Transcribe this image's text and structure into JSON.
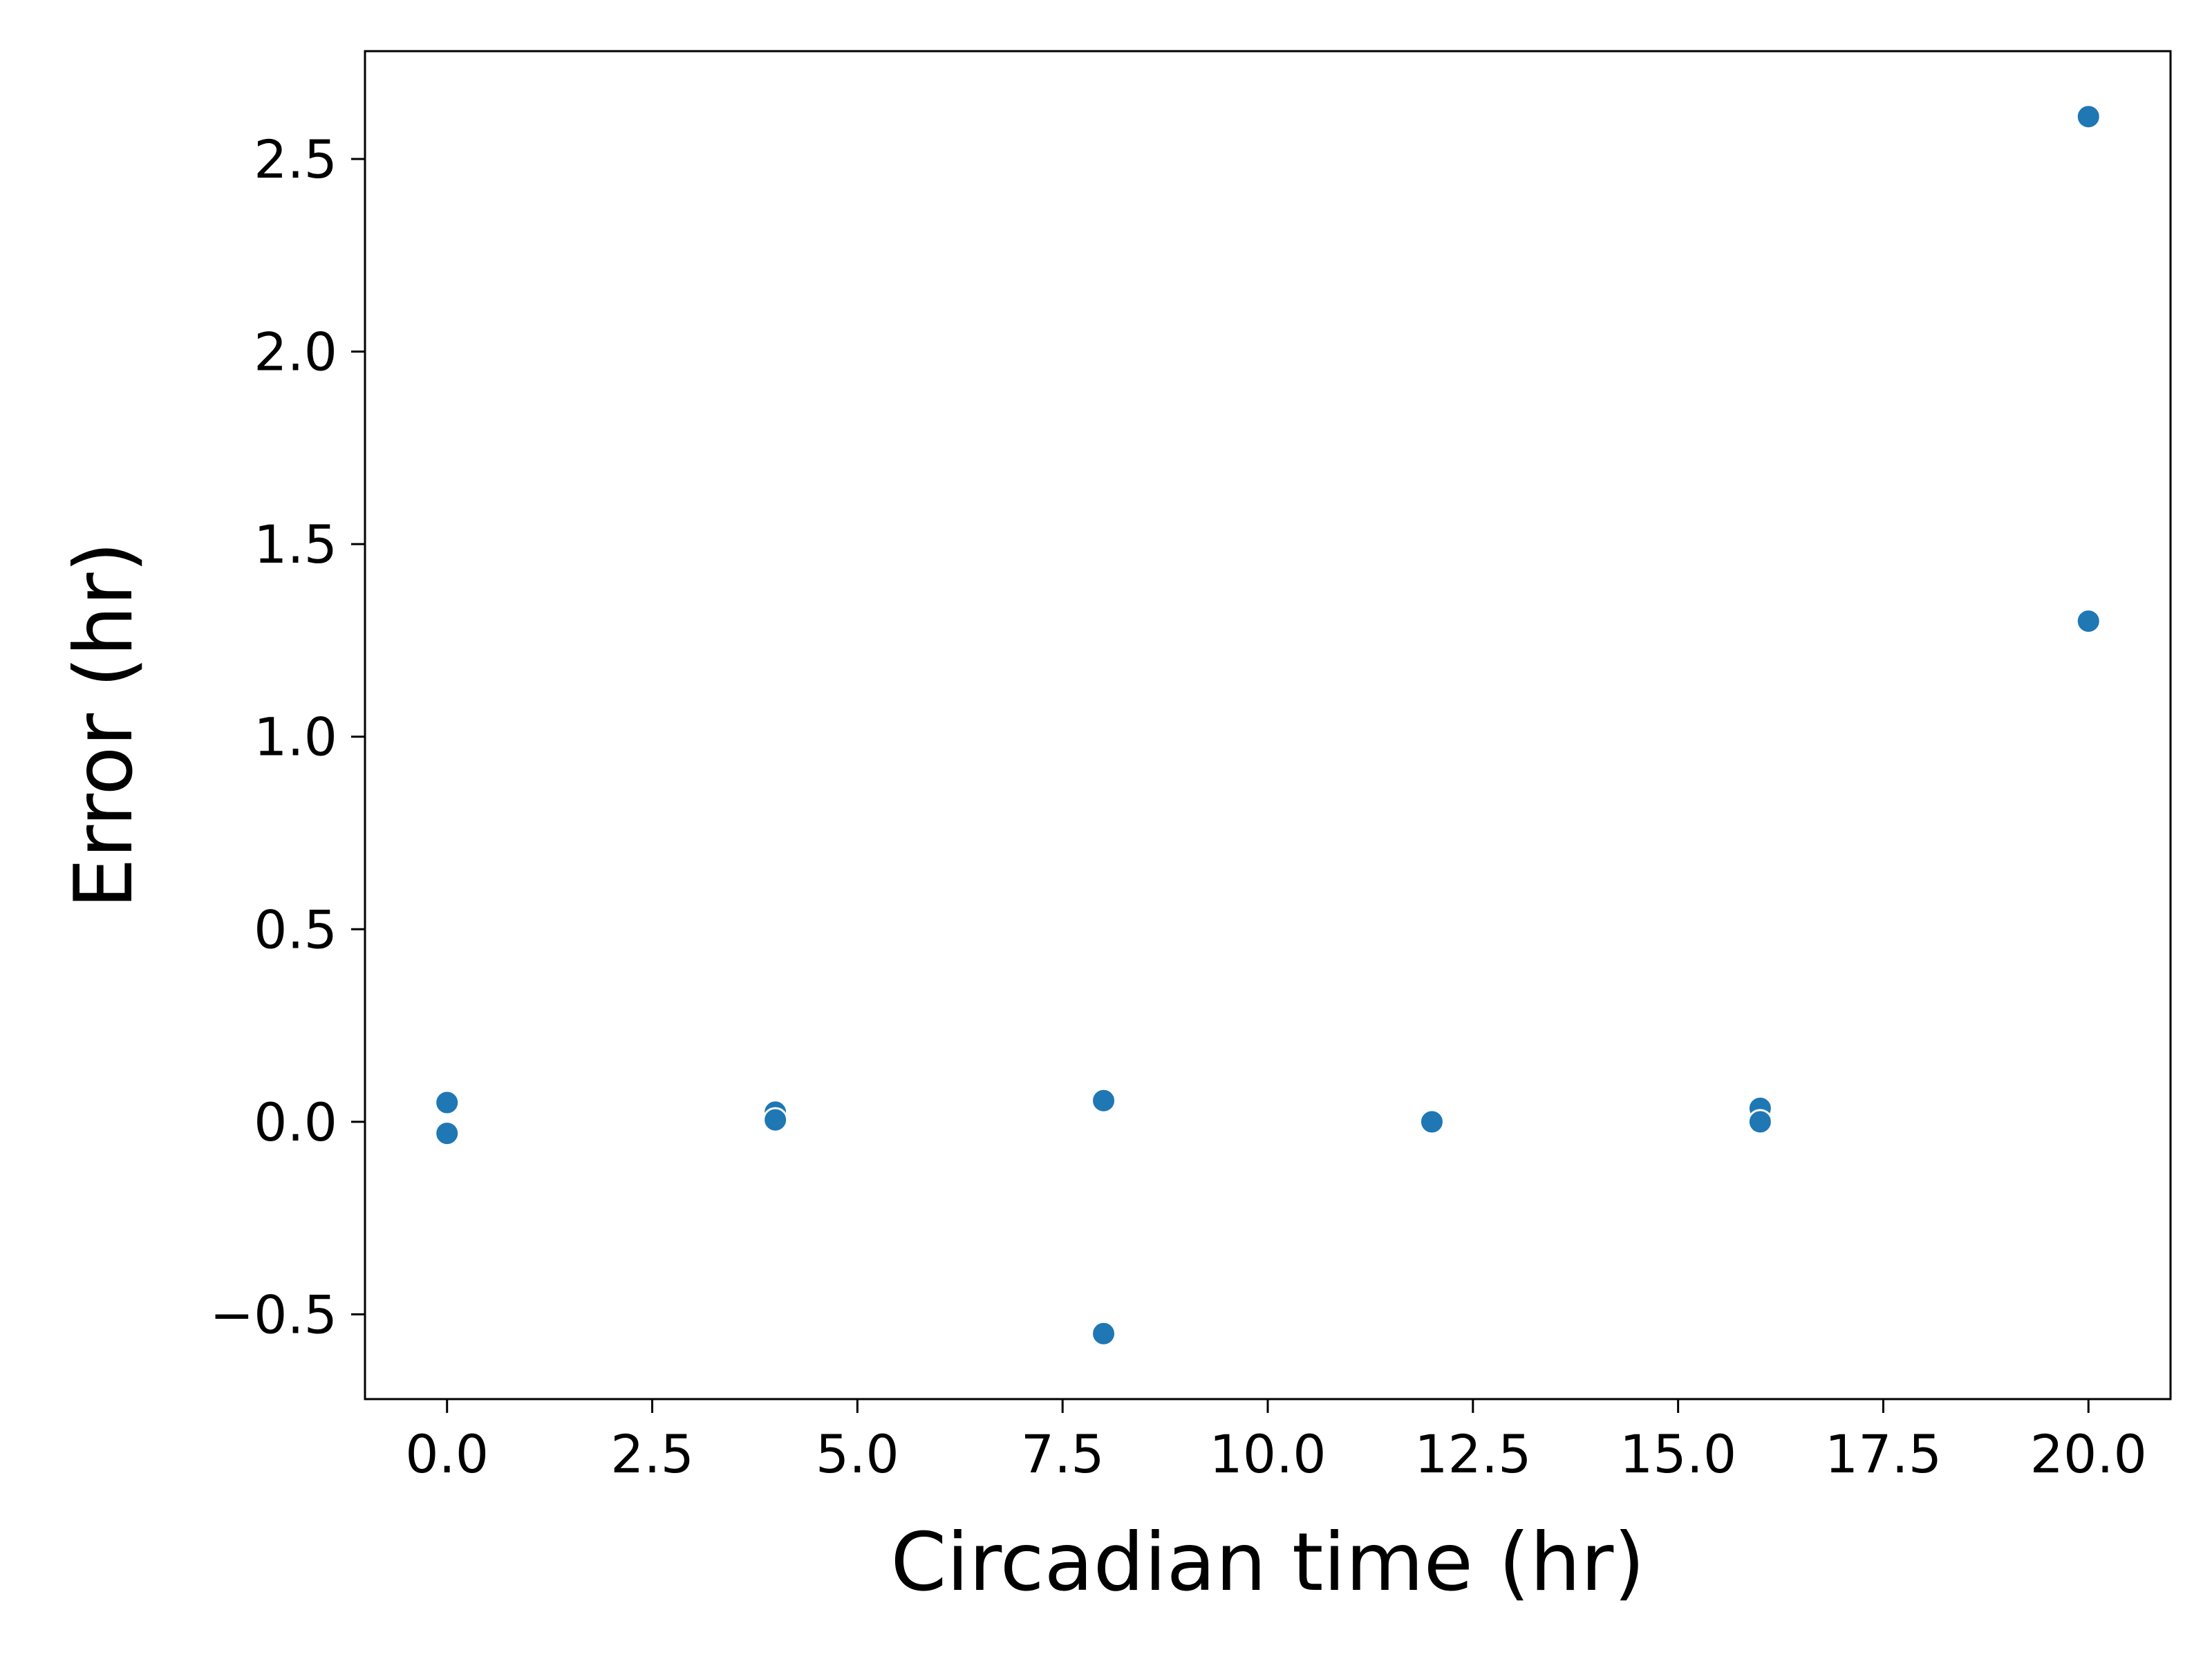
{
  "chart_data": {
    "type": "scatter",
    "title": "",
    "xlabel": "Circadian time (hr)",
    "ylabel": "Error (hr)",
    "xlim": [
      -1.0,
      21.0
    ],
    "ylim": [
      -0.72,
      2.78
    ],
    "xticks": [
      0.0,
      2.5,
      5.0,
      7.5,
      10.0,
      12.5,
      15.0,
      17.5,
      20.0
    ],
    "xtick_labels": [
      "0.0",
      "2.5",
      "5.0",
      "7.5",
      "10.0",
      "12.5",
      "15.0",
      "17.5",
      "20.0"
    ],
    "yticks": [
      -0.5,
      0.0,
      0.5,
      1.0,
      1.5,
      2.0,
      2.5
    ],
    "ytick_labels": [
      "−0.5",
      "0.0",
      "0.5",
      "1.0",
      "1.5",
      "2.0",
      "2.5"
    ],
    "grid": false,
    "legend": "none",
    "marker_color": "#1f77b4",
    "series": [
      {
        "name": "error",
        "points": [
          {
            "x": 0,
            "y": 0.05
          },
          {
            "x": 0,
            "y": -0.03
          },
          {
            "x": 4,
            "y": 0.025
          },
          {
            "x": 4,
            "y": 0.005
          },
          {
            "x": 8,
            "y": 0.055
          },
          {
            "x": 8,
            "y": -0.55
          },
          {
            "x": 12,
            "y": 0.0
          },
          {
            "x": 16,
            "y": 0.035
          },
          {
            "x": 16,
            "y": 0.0
          },
          {
            "x": 20,
            "y": 2.61
          },
          {
            "x": 20,
            "y": 1.3
          }
        ]
      }
    ]
  }
}
